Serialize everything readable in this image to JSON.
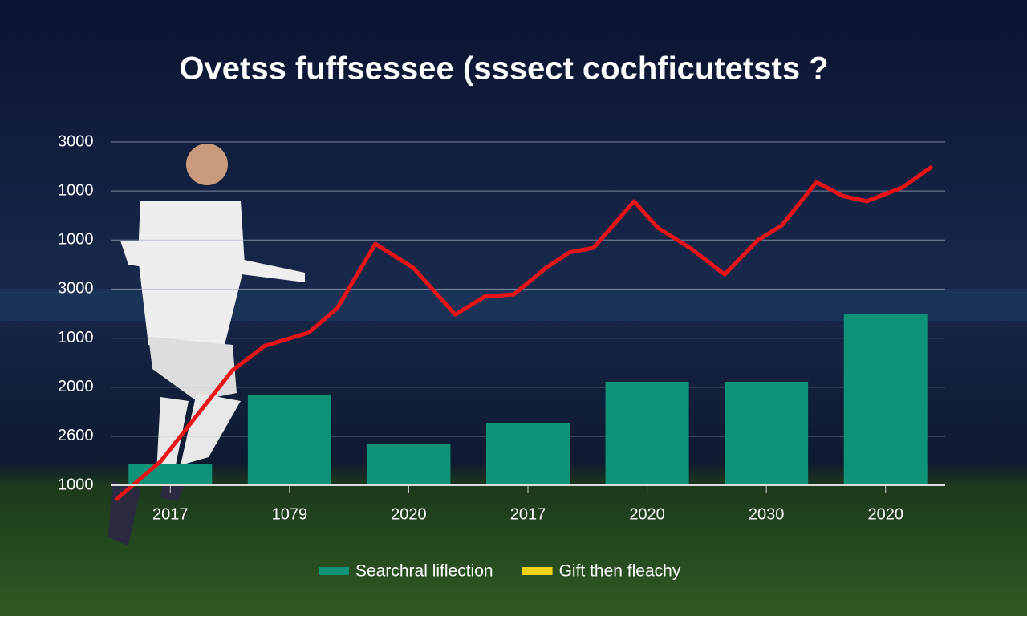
{
  "chart_data": {
    "type": "bar",
    "title": "Ovetss fuffsessee (sssect cochficutetsts ?",
    "categories": [
      "2017",
      "1079",
      "2020",
      "2017",
      "2020",
      "2030",
      "2020"
    ],
    "xlim": [
      0,
      7
    ],
    "ylim": [
      0,
      7
    ],
    "yticks": [
      {
        "value": 0,
        "label": "1000"
      },
      {
        "value": 1,
        "label": "2600"
      },
      {
        "value": 2,
        "label": "2000"
      },
      {
        "value": 3,
        "label": "1000"
      },
      {
        "value": 4,
        "label": "3000"
      },
      {
        "value": 5,
        "label": "1000"
      },
      {
        "value": 6,
        "label": "1000"
      },
      {
        "value": 7,
        "label": "3000"
      }
    ],
    "grid": true,
    "series": [
      {
        "name": "Searchral liflection",
        "color": "#0f9378",
        "values": [
          0.44,
          1.85,
          0.85,
          1.26,
          2.11,
          2.11,
          3.49
        ]
      },
      {
        "name": "Gift then fleachy",
        "type": "line",
        "color": "#e8141a",
        "legend_color": "#f2d21a",
        "x": [
          0.05,
          0.42,
          1.02,
          1.29,
          1.66,
          1.9,
          2.22,
          2.54,
          2.89,
          3.14,
          3.38,
          3.65,
          3.85,
          4.05,
          4.39,
          4.59,
          4.86,
          5.15,
          5.43,
          5.63,
          5.92,
          6.14,
          6.34,
          6.64,
          6.88
        ],
        "values": [
          -0.28,
          0.49,
          2.34,
          2.84,
          3.11,
          3.61,
          4.92,
          4.43,
          3.48,
          3.85,
          3.89,
          4.43,
          4.75,
          4.84,
          5.79,
          5.25,
          4.84,
          4.3,
          5.0,
          5.3,
          6.18,
          5.9,
          5.79,
          6.07,
          6.48
        ]
      }
    ]
  }
}
